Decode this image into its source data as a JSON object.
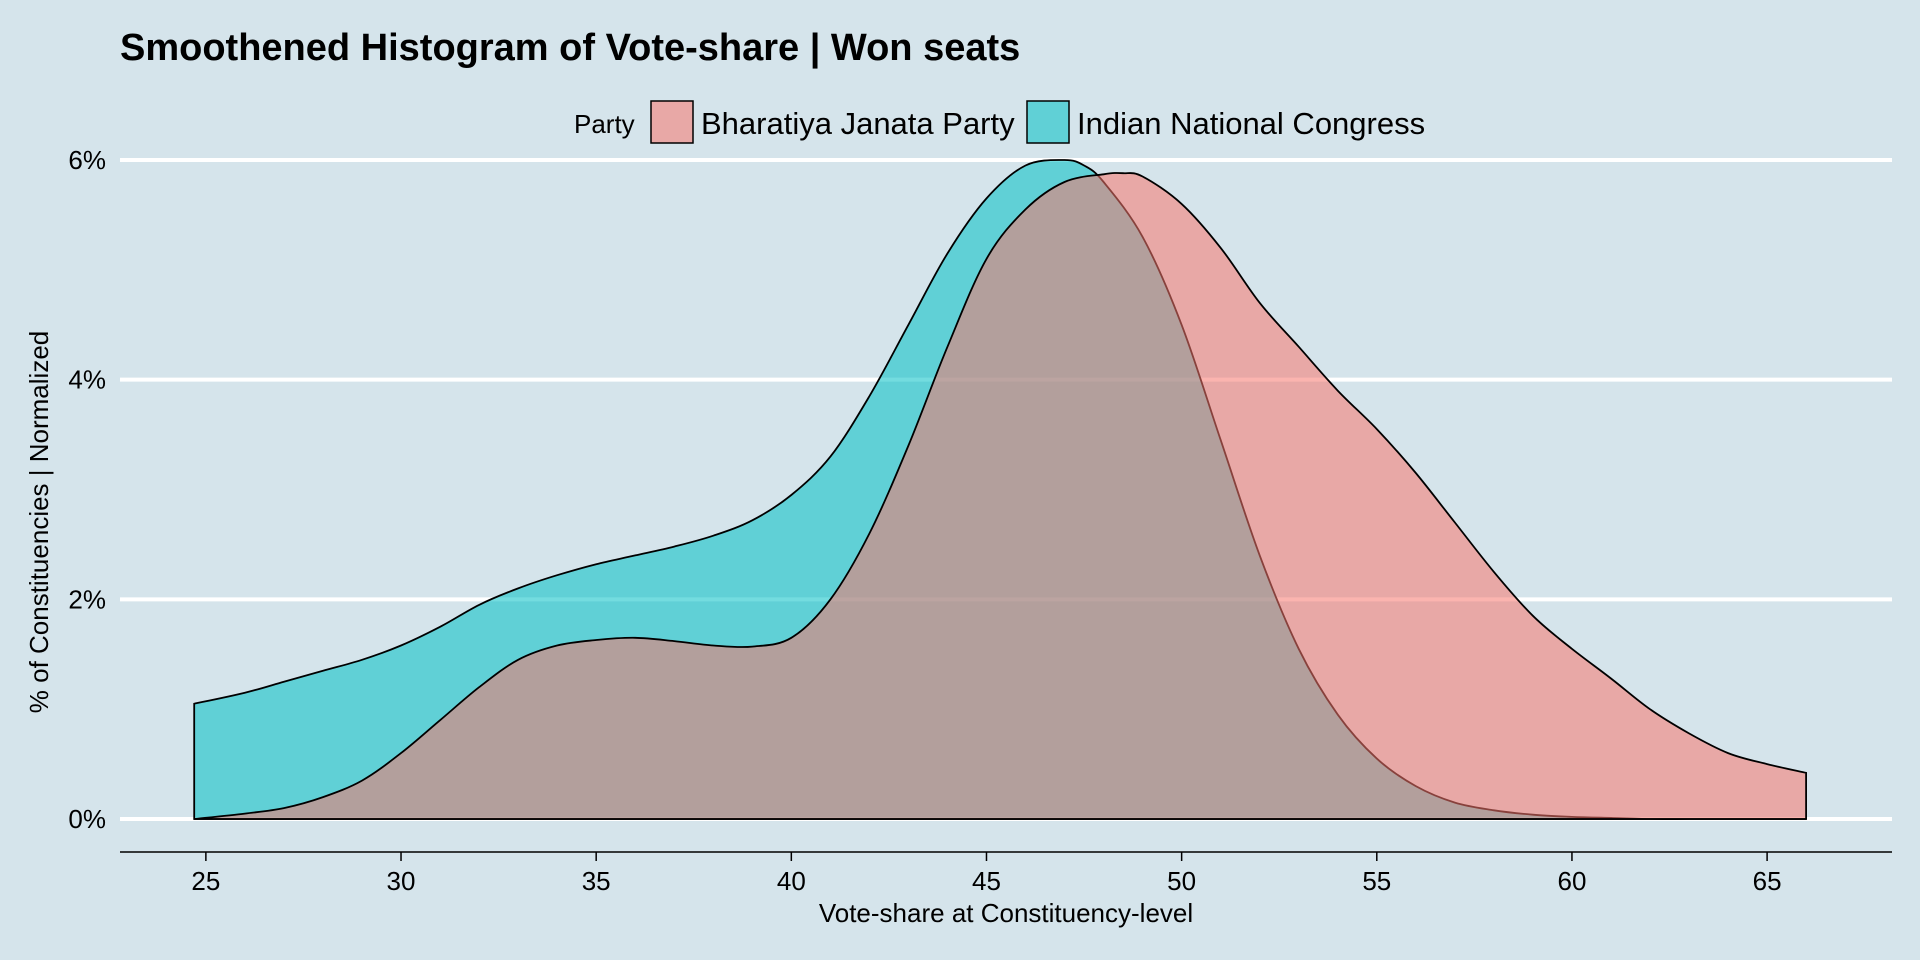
{
  "chart_data": {
    "type": "area",
    "title": "Smoothened Histogram of Vote-share |  Won seats",
    "xlabel": "Vote-share at Constituency-level",
    "ylabel": "% of Constituencies | Normalized",
    "xlim": [
      22.8,
      68.2
    ],
    "ylim": [
      -0.3,
      6.0
    ],
    "x_ticks": [
      25,
      30,
      35,
      40,
      45,
      50,
      55,
      60,
      65
    ],
    "x_tick_labels": [
      "25",
      "30",
      "35",
      "40",
      "45",
      "50",
      "55",
      "60",
      "65"
    ],
    "y_ticks": [
      0,
      2,
      4,
      6
    ],
    "y_tick_labels": [
      "0%",
      "2%",
      "4%",
      "6%"
    ],
    "grid": "horizontal",
    "legend": {
      "title": "Party",
      "position": "top",
      "entries": [
        "Bharatiya Janata Party",
        "Indian National Congress"
      ]
    },
    "series": [
      {
        "name": "Bharatiya Janata Party",
        "color": "#F8766D",
        "x": [
          24.7,
          26,
          27,
          28,
          29,
          30,
          31,
          32,
          33,
          34,
          35,
          36,
          37,
          38,
          39,
          40,
          41,
          42,
          43,
          44,
          45,
          46,
          47,
          48,
          48.5,
          49,
          50,
          51,
          52,
          53,
          54,
          55,
          56,
          57,
          58,
          59,
          60,
          61,
          62,
          63,
          64,
          65,
          66
        ],
        "values": [
          0.0,
          0.05,
          0.1,
          0.2,
          0.35,
          0.6,
          0.9,
          1.2,
          1.45,
          1.58,
          1.63,
          1.65,
          1.62,
          1.58,
          1.57,
          1.65,
          2.0,
          2.6,
          3.4,
          4.3,
          5.1,
          5.55,
          5.8,
          5.87,
          5.88,
          5.85,
          5.6,
          5.2,
          4.7,
          4.3,
          3.9,
          3.55,
          3.15,
          2.7,
          2.25,
          1.85,
          1.55,
          1.28,
          1.0,
          0.78,
          0.6,
          0.5,
          0.42
        ]
      },
      {
        "name": "Indian National Congress",
        "color": "#00BFC4",
        "x": [
          24.7,
          26,
          27,
          28,
          29,
          30,
          31,
          32,
          33,
          34,
          35,
          36,
          37,
          38,
          39,
          40,
          41,
          42,
          43,
          44,
          45,
          46,
          47,
          47.5,
          48,
          49,
          50,
          51,
          52,
          53,
          54,
          55,
          56,
          57,
          58,
          59,
          60,
          61,
          62,
          63,
          64,
          65,
          66
        ],
        "values": [
          1.05,
          1.15,
          1.25,
          1.35,
          1.45,
          1.58,
          1.75,
          1.95,
          2.1,
          2.22,
          2.32,
          2.4,
          2.48,
          2.58,
          2.72,
          2.95,
          3.3,
          3.85,
          4.5,
          5.15,
          5.65,
          5.95,
          6.0,
          5.95,
          5.8,
          5.3,
          4.5,
          3.45,
          2.4,
          1.55,
          0.95,
          0.55,
          0.3,
          0.15,
          0.08,
          0.04,
          0.02,
          0.01,
          0.0,
          0.0,
          0.0,
          0.0,
          0.0
        ]
      }
    ]
  }
}
